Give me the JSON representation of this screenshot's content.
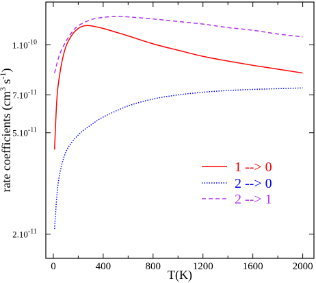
{
  "chart_data": {
    "type": "line",
    "xlabel": "T(K)",
    "ylabel": {
      "main": "rate coefficients (cm",
      "sup1": "3",
      "mid": " s",
      "sup2": "-1",
      "end": ")"
    },
    "xlim": [
      -60,
      2090
    ],
    "ylim": [
      1.7e-11,
      1.6e-10
    ],
    "xticks": [
      0,
      400,
      800,
      1200,
      1600,
      2000
    ],
    "yticks": [
      {
        "value": 2.1e-11,
        "mantissa": "2.10",
        "exponent": "-11"
      },
      {
        "value": 5.1e-11,
        "mantissa": "5.10",
        "exponent": "-11"
      },
      {
        "value": 7.1e-11,
        "mantissa": "7.10",
        "exponent": "-11"
      },
      {
        "value": 1.1e-10,
        "mantissa": "1.10",
        "exponent": "-10"
      }
    ],
    "grid": false,
    "legend_position": "right",
    "series": [
      {
        "name": "1 --> 0",
        "color": "#ff0000",
        "dash": "solid",
        "x": [
          10,
          30,
          60,
          100,
          150,
          200,
          250,
          300,
          400,
          500,
          600,
          800,
          1000,
          1200,
          1400,
          1600,
          1800,
          2000
        ],
        "y": [
          4.4e-11,
          7e-11,
          9e-11,
          1.08e-10,
          1.2e-10,
          1.27e-10,
          1.3e-10,
          1.3e-10,
          1.27e-10,
          1.23e-10,
          1.19e-10,
          1.11e-10,
          1.05e-10,
          9.95e-11,
          9.55e-11,
          9.2e-11,
          8.9e-11,
          8.6e-11
        ]
      },
      {
        "name": "2 --> 0",
        "color": "#0000ff",
        "dash": "dotted",
        "x": [
          10,
          40,
          100,
          200,
          300,
          400,
          600,
          800,
          1000,
          1200,
          1400,
          1600,
          1800,
          2000
        ],
        "y": [
          2.2e-11,
          3.3e-11,
          4.3e-11,
          5e-11,
          5.45e-11,
          5.85e-11,
          6.45e-11,
          6.85e-11,
          7.1e-11,
          7.27e-11,
          7.38e-11,
          7.45e-11,
          7.5e-11,
          7.55e-11
        ]
      },
      {
        "name": "2 --> 1",
        "color": "#b030f0",
        "dash": "dashed",
        "x": [
          10,
          50,
          100,
          150,
          200,
          300,
          400,
          500,
          600,
          800,
          1000,
          1200,
          1400,
          1600,
          1800,
          2000
        ],
        "y": [
          8.6e-11,
          1.01e-10,
          1.13e-10,
          1.23e-10,
          1.3e-10,
          1.37e-10,
          1.4e-10,
          1.41e-10,
          1.405e-10,
          1.38e-10,
          1.35e-10,
          1.32e-10,
          1.28e-10,
          1.25e-10,
          1.21e-10,
          1.18e-10
        ]
      }
    ]
  }
}
